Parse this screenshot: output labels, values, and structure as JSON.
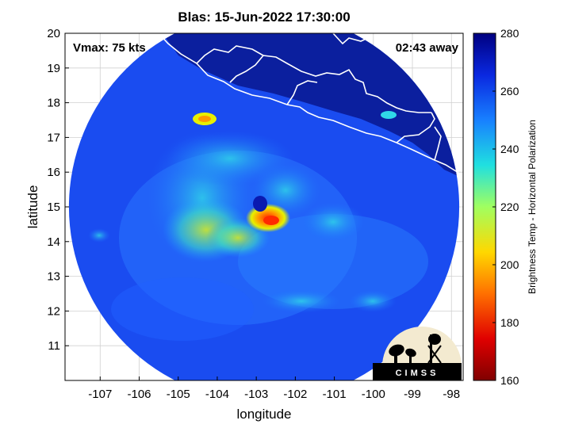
{
  "title": "Blas: 15-Jun-2022 17:30:00",
  "annotations": {
    "vmax": "Vmax: 75 kts",
    "time_away": "02:43 away"
  },
  "logo_text": "CIMSS",
  "chart_data": {
    "type": "heatmap",
    "xlabel": "longitude",
    "ylabel": "latitude",
    "xlim": [
      -107.9,
      -97.7
    ],
    "ylim": [
      10.0,
      20.0
    ],
    "xticks": [
      -107,
      -106,
      -105,
      -104,
      -103,
      -102,
      -101,
      -100,
      -99,
      -98
    ],
    "yticks": [
      11,
      12,
      13,
      14,
      15,
      16,
      17,
      18,
      19,
      20
    ],
    "grid": true,
    "colorbar": {
      "label": "Brightness Temp - Horizontal Polarization",
      "range": [
        160,
        280
      ],
      "ticks": [
        160,
        180,
        200,
        220,
        240,
        260,
        280
      ]
    },
    "storm_center": {
      "lon": -102.9,
      "lat": 14.9
    },
    "swath_center": {
      "lon": -102.8,
      "lat": 15.0,
      "radius_deg": 5.0
    }
  }
}
